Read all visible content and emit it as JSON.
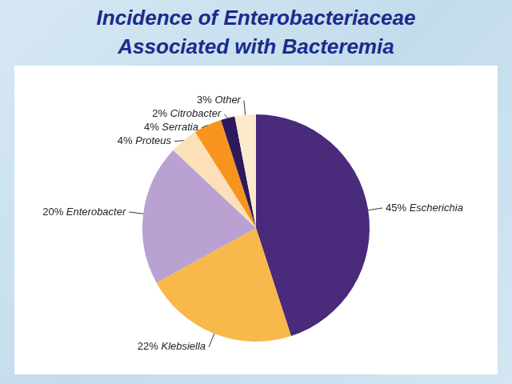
{
  "chart_data": {
    "type": "pie",
    "title": "Incidence of Enterobacteriaceae Associated with Bacteremia",
    "categories": [
      "Escherichia",
      "Klebsiella",
      "Enterobacter",
      "Proteus",
      "Serratia",
      "Citrobacter",
      "Other"
    ],
    "values": [
      45,
      22,
      20,
      4,
      4,
      2,
      3
    ],
    "value_labels": [
      "45%",
      "22%",
      "20%",
      "4%",
      "4%",
      "2%",
      "3%"
    ],
    "colors": [
      "#4a2a7a",
      "#f8b84a",
      "#b9a2d2",
      "#fbe0b8",
      "#f7941d",
      "#2d1a5c",
      "#fbeacb"
    ],
    "data_labels": true
  }
}
